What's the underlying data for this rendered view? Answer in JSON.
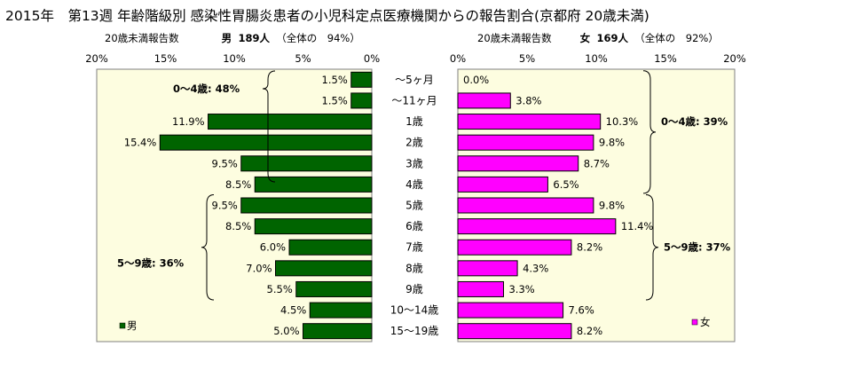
{
  "title": "2015年　第13週 年齢階級別 感染性胃腸炎患者の小児科定点医療機関からの報告割合(京都府 20歳未満)",
  "left_header": {
    "sub": "20歳未満報告数",
    "sex": "男",
    "count": "189人",
    "share": "（全体の　94%）"
  },
  "right_header": {
    "sub": "20歳未満報告数",
    "sex": "女",
    "count": "169人",
    "share": "（全体の　92%）"
  },
  "colors": {
    "male": "#006400",
    "female": "#ff00ff",
    "plot_bg": "#fdfde0"
  },
  "chart_data": [
    {
      "type": "bar",
      "orientation": "horizontal",
      "direction": "right-to-left",
      "categories": [
        "～5ヶ月",
        "～11ヶ月",
        "1歳",
        "2歳",
        "3歳",
        "4歳",
        "5歳",
        "6歳",
        "7歳",
        "8歳",
        "9歳",
        "10～14歳",
        "15～19歳"
      ],
      "series": [
        {
          "name": "男",
          "values": [
            1.5,
            1.5,
            11.9,
            15.4,
            9.5,
            8.5,
            9.5,
            8.5,
            6.0,
            7.0,
            5.5,
            4.5,
            5.0
          ]
        }
      ],
      "data_labels": [
        "1.5%",
        "1.5%",
        "11.9%",
        "15.4%",
        "9.5%",
        "8.5%",
        "9.5%",
        "8.5%",
        "6.0%",
        "7.0%",
        "5.5%",
        "4.5%",
        "5.0%"
      ],
      "ticks": [
        "20%",
        "15%",
        "10%",
        "5%",
        "0%"
      ],
      "xlim": [
        0,
        20
      ],
      "legend": "bottom-left",
      "annotations": [
        "0～4歳: 48%",
        "5～9歳: 36%"
      ]
    },
    {
      "type": "bar",
      "orientation": "horizontal",
      "direction": "left-to-right",
      "categories": [
        "～5ヶ月",
        "～11ヶ月",
        "1歳",
        "2歳",
        "3歳",
        "4歳",
        "5歳",
        "6歳",
        "7歳",
        "8歳",
        "9歳",
        "10～14歳",
        "15～19歳"
      ],
      "series": [
        {
          "name": "女",
          "values": [
            0.0,
            3.8,
            10.3,
            9.8,
            8.7,
            6.5,
            9.8,
            11.4,
            8.2,
            4.3,
            3.3,
            7.6,
            8.2
          ]
        }
      ],
      "data_labels": [
        "0.0%",
        "3.8%",
        "10.3%",
        "9.8%",
        "8.7%",
        "6.5%",
        "9.8%",
        "11.4%",
        "8.2%",
        "4.3%",
        "3.3%",
        "7.6%",
        "8.2%"
      ],
      "ticks": [
        "0%",
        "5%",
        "10%",
        "15%",
        "20%"
      ],
      "xlim": [
        0,
        20
      ],
      "legend": "bottom-right",
      "annotations": [
        "0～4歳: 39%",
        "5～9歳: 37%"
      ]
    }
  ]
}
